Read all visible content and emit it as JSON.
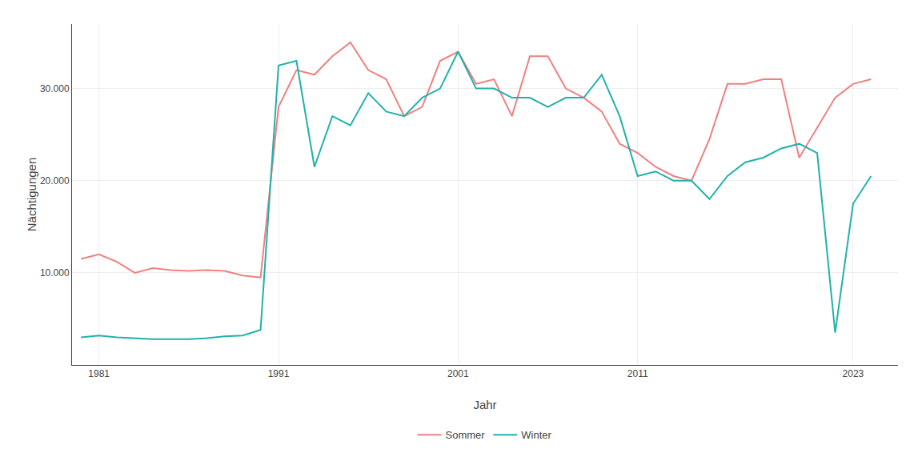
{
  "chart_data": {
    "type": "line",
    "x": [
      1980,
      1981,
      1982,
      1983,
      1984,
      1985,
      1986,
      1987,
      1988,
      1989,
      1990,
      1991,
      1992,
      1993,
      1994,
      1995,
      1996,
      1997,
      1998,
      1999,
      2000,
      2001,
      2002,
      2003,
      2004,
      2005,
      2006,
      2007,
      2008,
      2009,
      2010,
      2011,
      2012,
      2013,
      2014,
      2015,
      2016,
      2017,
      2018,
      2019,
      2020,
      2021,
      2022,
      2023,
      2024
    ],
    "series": [
      {
        "name": "Sommer",
        "color": "#F08080",
        "values": [
          11500,
          12000,
          11200,
          10000,
          10500,
          10300,
          10200,
          10300,
          10200,
          9700,
          9500,
          28000,
          32000,
          31500,
          33500,
          35000,
          32000,
          31000,
          27000,
          28000,
          33000,
          34000,
          30500,
          31000,
          27000,
          33500,
          33500,
          30000,
          29000,
          27500,
          24000,
          23000,
          21500,
          20500,
          20000,
          24500,
          30500,
          30500,
          31000,
          31000,
          22500,
          null,
          29000,
          30500,
          31000
        ]
      },
      {
        "name": "Winter",
        "color": "#20B2AA",
        "values": [
          3000,
          3200,
          3000,
          2900,
          2800,
          2800,
          2800,
          2900,
          3100,
          3200,
          3800,
          32500,
          33000,
          21500,
          27000,
          26000,
          29500,
          27500,
          27000,
          29000,
          30000,
          34000,
          30000,
          30000,
          29000,
          29000,
          28000,
          29000,
          29000,
          31500,
          27000,
          20500,
          21000,
          20000,
          20000,
          18000,
          20500,
          22000,
          22500,
          23500,
          24000,
          23000,
          3500,
          17500,
          20500
        ]
      }
    ],
    "xlabel": "Jahr",
    "ylabel": "Nächtigungen",
    "xlim": [
      1979.5,
      2025.5
    ],
    "ylim": [
      0,
      37000
    ],
    "xticks": [
      1981,
      1991,
      2001,
      2011,
      2023
    ],
    "yticks": [
      {
        "value": 10000,
        "label": "10.000"
      },
      {
        "value": 20000,
        "label": "20.000"
      },
      {
        "value": 30000,
        "label": "30.000"
      }
    ],
    "grid": true,
    "legend": "bottom"
  }
}
